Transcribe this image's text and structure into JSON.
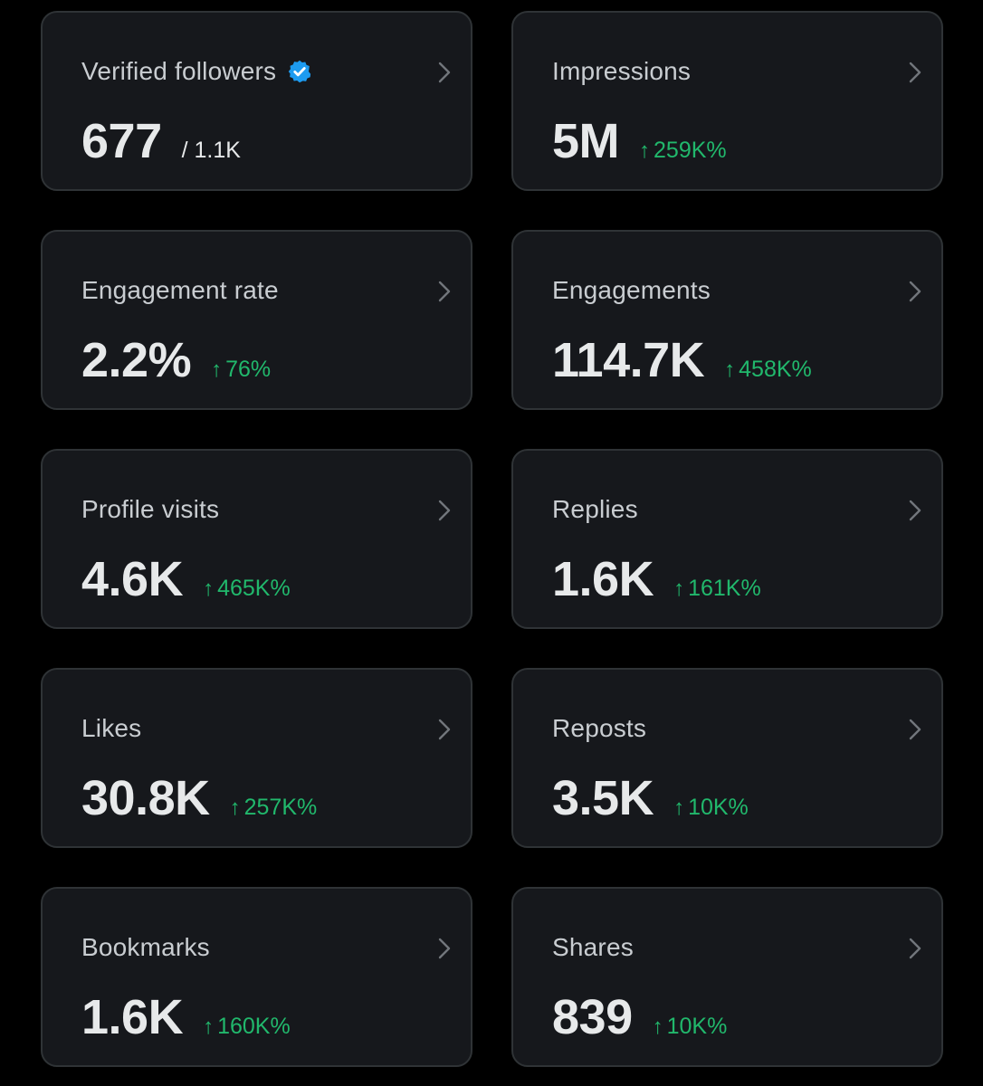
{
  "colors": {
    "background": "#000000",
    "card": "#16181c",
    "border": "#2f3336",
    "label": "#c9cdd1",
    "value": "#e7e9ea",
    "positive": "#21b86c",
    "verified": "#1d9bf0"
  },
  "cards": [
    {
      "label": "Verified followers",
      "value": "677",
      "total": "/ 1.1K",
      "icon": "verified-badge-icon"
    },
    {
      "label": "Impressions",
      "value": "5M",
      "arrow": "↑",
      "change": "259K%"
    },
    {
      "label": "Engagement rate",
      "value": "2.2%",
      "arrow": "↑",
      "change": "76%"
    },
    {
      "label": "Engagements",
      "value": "114.7K",
      "arrow": "↑",
      "change": "458K%"
    },
    {
      "label": "Profile visits",
      "value": "4.6K",
      "arrow": "↑",
      "change": "465K%"
    },
    {
      "label": "Replies",
      "value": "1.6K",
      "arrow": "↑",
      "change": "161K%"
    },
    {
      "label": "Likes",
      "value": "30.8K",
      "arrow": "↑",
      "change": "257K%"
    },
    {
      "label": "Reposts",
      "value": "3.5K",
      "arrow": "↑",
      "change": "10K%"
    },
    {
      "label": "Bookmarks",
      "value": "1.6K",
      "arrow": "↑",
      "change": "160K%"
    },
    {
      "label": "Shares",
      "value": "839",
      "arrow": "↑",
      "change": "10K%"
    }
  ]
}
